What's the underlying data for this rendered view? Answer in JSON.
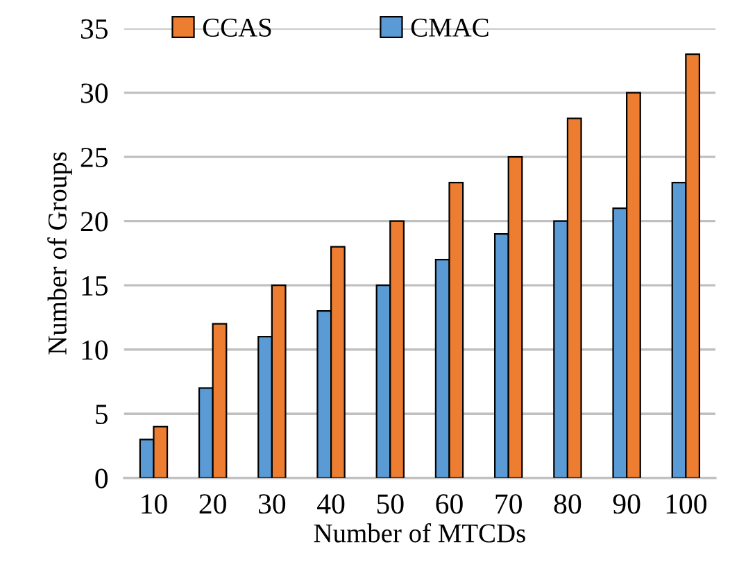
{
  "chart_data": {
    "type": "bar",
    "xlabel": "Number of MTCDs",
    "ylabel": "Number of Groups",
    "categories": [
      "10",
      "20",
      "30",
      "40",
      "50",
      "60",
      "70",
      "80",
      "90",
      "100"
    ],
    "series": [
      {
        "name": "CMAC",
        "color": "#5b9bd5",
        "values": [
          3,
          7,
          11,
          13,
          15,
          17,
          19,
          20,
          21,
          23
        ]
      },
      {
        "name": "CCAS",
        "color": "#ed7d31",
        "values": [
          4,
          12,
          15,
          18,
          20,
          23,
          25,
          28,
          30,
          33
        ]
      }
    ],
    "ylim": [
      0,
      35
    ],
    "yticks": [
      0,
      5,
      10,
      15,
      20,
      25,
      30,
      35
    ],
    "grid": "y",
    "legend": "top"
  }
}
